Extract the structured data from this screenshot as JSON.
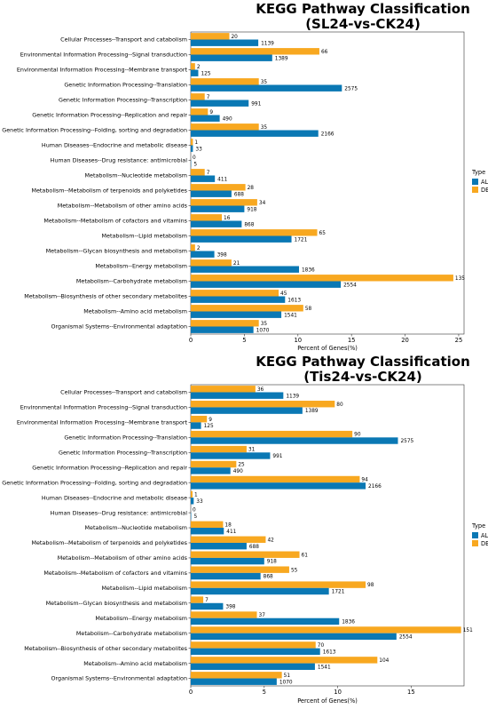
{
  "colors": {
    "all": "#0a78b4",
    "deg": "#f8a820"
  },
  "chart_data": [
    {
      "type": "bar",
      "orientation": "horizontal",
      "title_lines": [
        "KEGG Pathway Classification",
        "(SL24-vs-CK24)"
      ],
      "xlabel": "Percent of Genes(%)",
      "xlim": [
        0,
        25.5
      ],
      "xticks": [
        0,
        5,
        10,
        15,
        20,
        25
      ],
      "legend": {
        "title": "Type",
        "entries": [
          "ALL",
          "DEG"
        ],
        "placement": "right"
      },
      "categories": [
        "Cellular Processes--Transport and catabolism",
        "Environmental Information Processing--Signal transduction",
        "Environmental Information Processing--Membrane transport",
        "Genetic Information Processing--Translation",
        "Genetic Information Processing--Transcription",
        "Genetic Information Processing--Replication and repair",
        "Genetic Information Processing--Folding, sorting and degradation",
        "Human Diseases--Endocrine and metabolic disease",
        "Human Diseases--Drug resistance: antimicrobial",
        "Metabolism--Nucleotide metabolism",
        "Metabolism--Metabolism of terpenoids and polyketides",
        "Metabolism--Metabolism of other amino acids",
        "Metabolism--Metabolism of cofactors and vitamins",
        "Metabolism--Lipid metabolism",
        "Metabolism--Glycan biosynthesis and metabolism",
        "Metabolism--Energy metabolism",
        "Metabolism--Carbohydrate metabolism",
        "Metabolism--Biosynthesis of other secondary metabolites",
        "Metabolism--Amino acid metabolism",
        "Organismal Systems--Environmental adaptation"
      ],
      "series": [
        {
          "name": "ALL",
          "percent": [
            6.3,
            7.6,
            0.7,
            14.1,
            5.4,
            2.7,
            11.9,
            0.2,
            0.03,
            2.25,
            3.8,
            5.0,
            4.75,
            9.4,
            2.2,
            10.1,
            14.0,
            8.8,
            8.45,
            5.85
          ],
          "labels": [
            "1139",
            "1389",
            "125",
            "2575",
            "991",
            "490",
            "2166",
            "33",
            "5",
            "411",
            "688",
            "918",
            "868",
            "1721",
            "398",
            "1836",
            "2554",
            "1613",
            "1541",
            "1070"
          ]
        },
        {
          "name": "DEG",
          "percent": [
            3.6,
            12.0,
            0.4,
            6.35,
            1.3,
            1.6,
            6.35,
            0.2,
            0.0,
            1.3,
            5.1,
            6.2,
            2.9,
            11.8,
            0.4,
            3.8,
            24.5,
            8.2,
            10.5,
            6.35
          ],
          "labels": [
            "20",
            "66",
            "2",
            "35",
            "7",
            "9",
            "35",
            "1",
            "0",
            "7",
            "28",
            "34",
            "16",
            "65",
            "2",
            "21",
            "135",
            "45",
            "58",
            "35"
          ]
        }
      ]
    },
    {
      "type": "bar",
      "orientation": "horizontal",
      "title_lines": [
        "KEGG Pathway Classification",
        "(Tis24-vs-CK24)"
      ],
      "xlabel": "Percent of Genes(%)",
      "xlim": [
        0,
        18.6
      ],
      "xticks": [
        0,
        5,
        10,
        15
      ],
      "legend": {
        "title": "Type",
        "entries": [
          "ALL",
          "DEG"
        ],
        "placement": "right"
      },
      "categories": [
        "Cellular Processes--Transport and catabolism",
        "Environmental Information Processing--Signal transduction",
        "Environmental Information Processing--Membrane transport",
        "Genetic Information Processing--Translation",
        "Genetic Information Processing--Transcription",
        "Genetic Information Processing--Replication and repair",
        "Genetic Information Processing--Folding, sorting and degradation",
        "Human Diseases--Endocrine and metabolic disease",
        "Human Diseases--Drug resistance: antimicrobial",
        "Metabolism--Nucleotide metabolism",
        "Metabolism--Metabolism of terpenoids and polyketides",
        "Metabolism--Metabolism of other amino acids",
        "Metabolism--Metabolism of cofactors and vitamins",
        "Metabolism--Lipid metabolism",
        "Metabolism--Glycan biosynthesis and metabolism",
        "Metabolism--Energy metabolism",
        "Metabolism--Carbohydrate metabolism",
        "Metabolism--Biosynthesis of other secondary metabolites",
        "Metabolism--Amino acid metabolism",
        "Organismal Systems--Environmental adaptation"
      ],
      "series": [
        {
          "name": "ALL",
          "percent": [
            6.3,
            7.6,
            0.7,
            14.1,
            5.4,
            2.7,
            11.9,
            0.2,
            0.03,
            2.25,
            3.8,
            5.0,
            4.75,
            9.4,
            2.2,
            10.1,
            14.0,
            8.8,
            8.45,
            5.85
          ],
          "labels": [
            "1139",
            "1389",
            "125",
            "2575",
            "991",
            "490",
            "2166",
            "33",
            "5",
            "411",
            "688",
            "918",
            "868",
            "1721",
            "398",
            "1836",
            "2554",
            "1613",
            "1541",
            "1070"
          ]
        },
        {
          "name": "DEG",
          "percent": [
            4.4,
            9.8,
            1.1,
            11.0,
            3.8,
            3.1,
            11.5,
            0.12,
            0.0,
            2.2,
            5.1,
            7.4,
            6.7,
            11.9,
            0.85,
            4.5,
            18.4,
            8.5,
            12.7,
            6.2
          ],
          "labels": [
            "36",
            "80",
            "9",
            "90",
            "31",
            "25",
            "94",
            "1",
            "0",
            "18",
            "42",
            "61",
            "55",
            "98",
            "7",
            "37",
            "151",
            "70",
            "104",
            "51"
          ]
        }
      ]
    }
  ]
}
